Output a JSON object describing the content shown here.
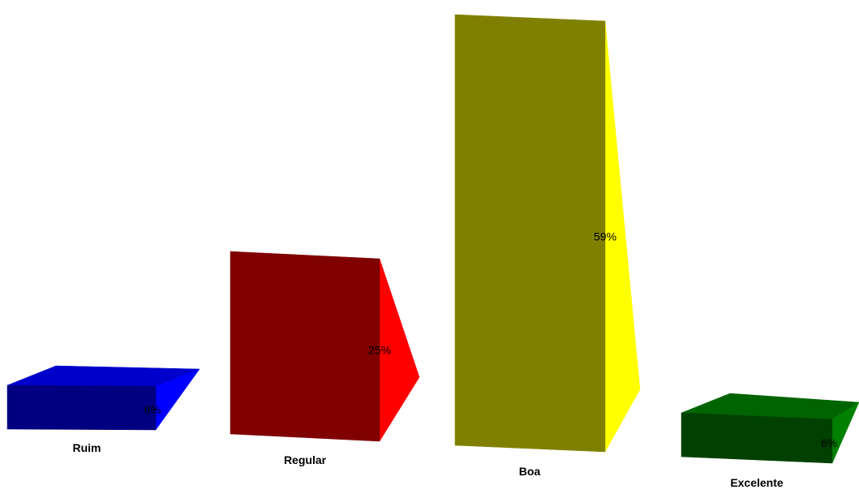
{
  "chart_data": {
    "type": "bar",
    "categories": [
      "Ruim",
      "Regular",
      "Boa",
      "Excelente"
    ],
    "values": [
      6,
      25,
      59,
      6
    ],
    "value_labels": [
      "6%",
      "25%",
      "59%",
      "6%"
    ],
    "title": "",
    "xlabel": "",
    "ylabel": "",
    "unit": "%",
    "grid": false,
    "legend": "none",
    "style": "3d-perspective",
    "colors": [
      {
        "front": "#000080",
        "side": "#0000ff",
        "top": "#0000cc"
      },
      {
        "front": "#800000",
        "side": "#ff0000",
        "top": "#cc0000"
      },
      {
        "front": "#808000",
        "side": "#ffff00",
        "top": "#cccc00"
      },
      {
        "front": "#004000",
        "side": "#008000",
        "top": "#006400"
      }
    ]
  }
}
